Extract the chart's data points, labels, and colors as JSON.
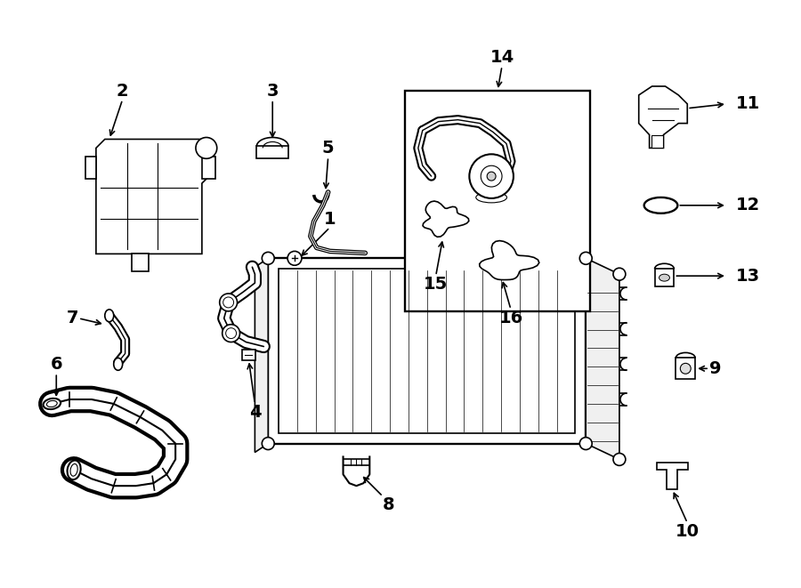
{
  "bg_color": "#ffffff",
  "line_color": "#000000",
  "text_color": "#000000",
  "fig_width": 9.0,
  "fig_height": 6.61,
  "label_fontsize": 13,
  "lw": 1.2
}
